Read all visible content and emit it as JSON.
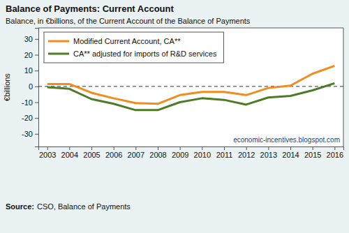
{
  "chart_data": {
    "type": "line",
    "title": "Balance of Payments: Current Account",
    "subtitle": "Balance, in €billions, of the Current Account of the Balance of Payments",
    "y_label": "€billions",
    "x": [
      2003,
      2004,
      2005,
      2006,
      2007,
      2008,
      2009,
      2010,
      2011,
      2012,
      2013,
      2014,
      2015,
      2016
    ],
    "series": [
      {
        "name": "Modified Current Account, CA**",
        "color": "#f28c1e",
        "values": [
          1.5,
          1.5,
          -4,
          -7.5,
          -10.5,
          -11,
          -5.5,
          -3.5,
          -3.5,
          -5.5,
          -1,
          0.5,
          8,
          13
        ]
      },
      {
        "name": "CA** adjusted for imports of R&D services",
        "color": "#4f7a28",
        "values": [
          -0.5,
          -1.5,
          -8,
          -11,
          -15,
          -15,
          -10,
          -7.5,
          -8.5,
          -11.5,
          -7,
          -6,
          -2.5,
          2
        ]
      }
    ],
    "xlim": [
      2002.6,
      2016.4
    ],
    "xticks": [
      2003,
      2004,
      2005,
      2006,
      2007,
      2008,
      2009,
      2010,
      2011,
      2012,
      2013,
      2014,
      2015,
      2016
    ],
    "ylim": [
      -38,
      37
    ],
    "yticks": [
      -30,
      -20,
      -10,
      0,
      10,
      20,
      30
    ],
    "hline": 0,
    "grid": false,
    "legend": "top-left",
    "annotation": "economic-incentives.blogspot.com",
    "source_label": "Source:",
    "source_text": "CSO, Balance of Payments"
  }
}
